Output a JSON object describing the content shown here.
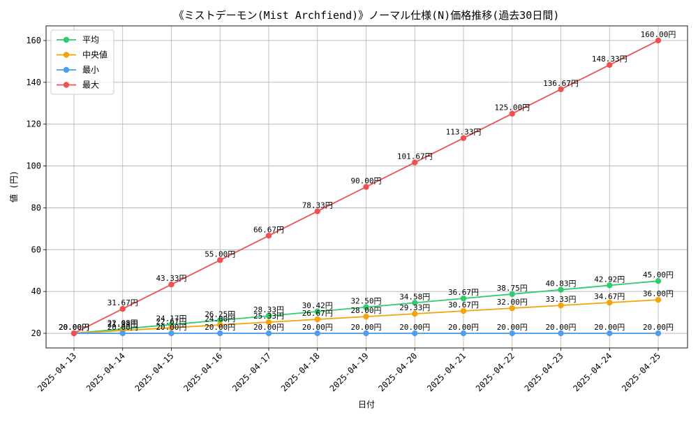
{
  "chart_data": {
    "type": "line",
    "title": "《ミストデーモン(Mist Archfiend)》ノーマル仕様(N)価格推移(過去30日間)",
    "xlabel": "日付",
    "ylabel": "値 (円)",
    "categories": [
      "2025-04-13",
      "2025-04-14",
      "2025-04-15",
      "2025-04-16",
      "2025-04-17",
      "2025-04-18",
      "2025-04-19",
      "2025-04-20",
      "2025-04-21",
      "2025-04-22",
      "2025-04-23",
      "2025-04-24",
      "2025-04-25"
    ],
    "ylim": [
      13,
      167
    ],
    "yticks": [
      20,
      40,
      60,
      80,
      100,
      120,
      140,
      160
    ],
    "grid": true,
    "legend_position": "top-left",
    "series": [
      {
        "name": "平均",
        "color": "#2ecc71",
        "values": [
          20.0,
          22.08,
          24.17,
          26.25,
          28.33,
          30.42,
          32.5,
          34.58,
          36.67,
          38.75,
          40.83,
          42.92,
          45.0
        ],
        "labels": [
          "20.00円",
          "22.08円",
          "24.17円",
          "26.25円",
          "28.33円",
          "30.42円",
          "32.50円",
          "34.58円",
          "36.67円",
          "38.75円",
          "40.83円",
          "42.92円",
          "45.00円"
        ]
      },
      {
        "name": "中央値",
        "color": "#f5a30a",
        "values": [
          20.0,
          21.33,
          22.67,
          24.0,
          25.33,
          26.67,
          28.0,
          29.33,
          30.67,
          32.0,
          33.33,
          34.67,
          36.0
        ],
        "labels": [
          "20.00円",
          "21.33円",
          "22.67円",
          "24.00円",
          "25.33円",
          "26.67円",
          "28.00円",
          "29.33円",
          "30.67円",
          "32.00円",
          "33.33円",
          "34.67円",
          "36.00円"
        ]
      },
      {
        "name": "最小",
        "color": "#4a9ff5",
        "values": [
          20.0,
          20.0,
          20.0,
          20.0,
          20.0,
          20.0,
          20.0,
          20.0,
          20.0,
          20.0,
          20.0,
          20.0,
          20.0
        ],
        "labels": [
          "20.00円",
          "20.00円",
          "20.00円",
          "20.00円",
          "20.00円",
          "20.00円",
          "20.00円",
          "20.00円",
          "20.00円",
          "20.00円",
          "20.00円",
          "20.00円",
          "20.00円"
        ]
      },
      {
        "name": "最大",
        "color": "#f05050",
        "values": [
          20.0,
          31.67,
          43.33,
          55.0,
          66.67,
          78.33,
          90.0,
          101.67,
          113.33,
          125.0,
          136.67,
          148.33,
          160.0
        ],
        "labels": [
          "20.00円",
          "31.67円",
          "43.33円",
          "55.00円",
          "66.67円",
          "78.33円",
          "90.00円",
          "101.67円",
          "113.33円",
          "125.00円",
          "136.67円",
          "148.33円",
          "160.00円"
        ]
      }
    ]
  }
}
